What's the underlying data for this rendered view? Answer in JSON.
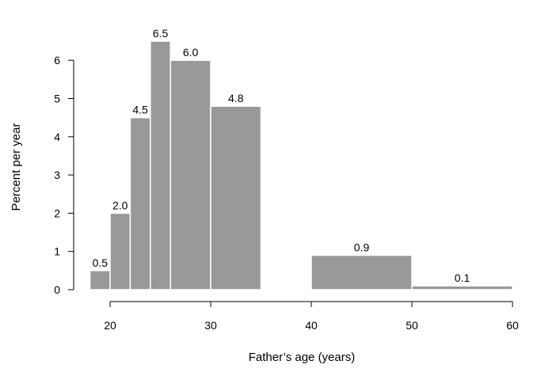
{
  "chart_data": {
    "type": "histogram",
    "xlabel": "Father’s age (years)",
    "ylabel": "Percent per year",
    "xlim": [
      18,
      60
    ],
    "ylim": [
      0,
      6.5
    ],
    "xticks": [
      20,
      30,
      40,
      50,
      60
    ],
    "yticks": [
      0,
      1,
      2,
      3,
      4,
      5,
      6
    ],
    "bar_color": "#999999",
    "bins": [
      {
        "x0": 18,
        "x1": 20,
        "value": 0.5,
        "label": "0.5"
      },
      {
        "x0": 20,
        "x1": 22,
        "value": 2.0,
        "label": "2.0"
      },
      {
        "x0": 22,
        "x1": 24,
        "value": 4.5,
        "label": "4.5"
      },
      {
        "x0": 24,
        "x1": 26,
        "value": 6.5,
        "label": "6.5"
      },
      {
        "x0": 26,
        "x1": 30,
        "value": 6.0,
        "label": "6.0"
      },
      {
        "x0": 30,
        "x1": 35,
        "value": 4.8,
        "label": "4.8"
      },
      {
        "x0": 40,
        "x1": 50,
        "value": 0.9,
        "label": "0.9"
      },
      {
        "x0": 50,
        "x1": 60,
        "value": 0.1,
        "label": "0.1"
      }
    ]
  }
}
